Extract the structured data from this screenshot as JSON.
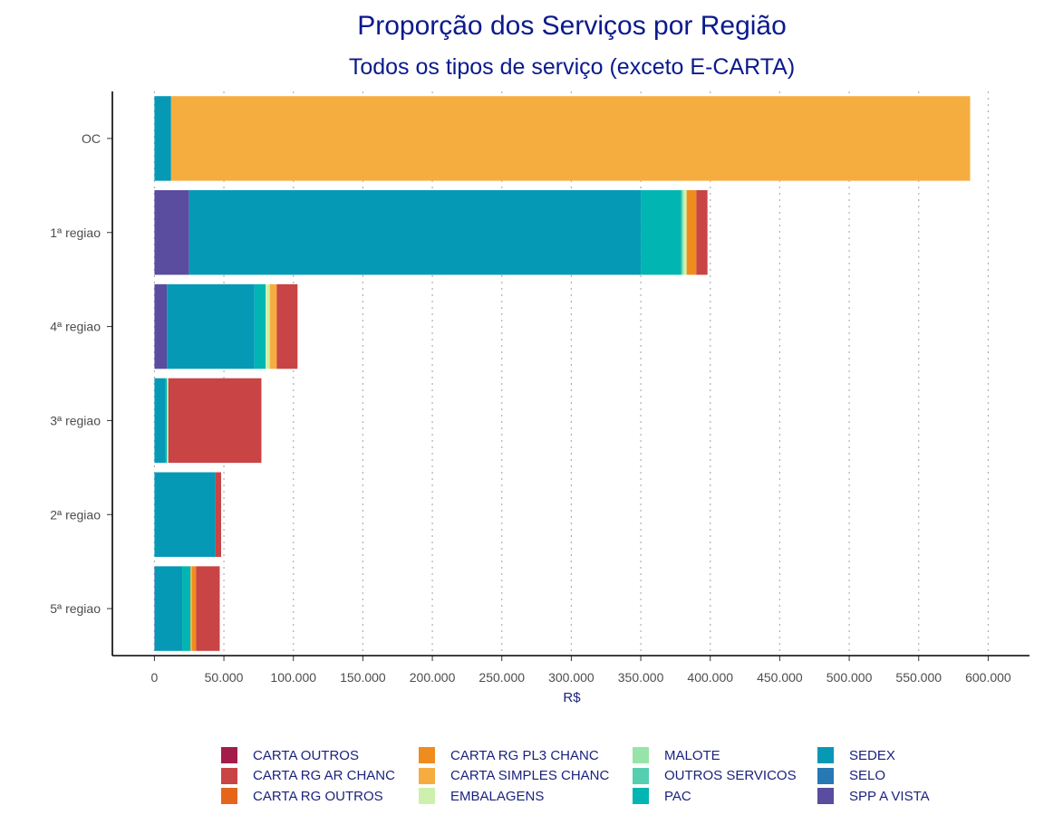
{
  "chart_data": {
    "type": "bar",
    "orientation": "horizontal",
    "stacked": true,
    "title": "Proporção dos Serviços por Região",
    "subtitle": "Todos os tipos de serviço (exceto E-CARTA)",
    "xlabel": "R$",
    "ylabel": "",
    "xlim": [
      -30000,
      630000
    ],
    "xticks": [
      0,
      50000,
      100000,
      150000,
      200000,
      250000,
      300000,
      350000,
      400000,
      450000,
      500000,
      550000,
      600000
    ],
    "xtick_labels": [
      "0",
      "50.000",
      "100.000",
      "150.000",
      "200.000",
      "250.000",
      "300.000",
      "350.000",
      "400.000",
      "450.000",
      "500.000",
      "550.000",
      "600.000"
    ],
    "grid": "vertical dotted",
    "legend_position": "bottom",
    "categories": [
      "OC",
      "1ª regiao",
      "4ª regiao",
      "3ª regiao",
      "2ª regiao",
      "5ª regiao"
    ],
    "series": [
      {
        "name": "SPP A VISTA",
        "color": "#5a4c9e",
        "values": [
          0,
          25000,
          9000,
          0,
          0,
          0
        ]
      },
      {
        "name": "SELO",
        "color": "#2878b4",
        "values": [
          0,
          0,
          0,
          0,
          0,
          1000
        ]
      },
      {
        "name": "SEDEX",
        "color": "#0599b6",
        "values": [
          12000,
          325000,
          63000,
          8000,
          44000,
          19000
        ]
      },
      {
        "name": "PAC",
        "color": "#00b5b2",
        "values": [
          0,
          29000,
          8000,
          1000,
          0,
          6000
        ]
      },
      {
        "name": "OUTROS SERVICOS",
        "color": "#55cfb0",
        "values": [
          0,
          1000,
          0,
          0,
          0,
          0
        ]
      },
      {
        "name": "MALOTE",
        "color": "#98e4a8",
        "values": [
          0,
          1000,
          0,
          0,
          0,
          0
        ]
      },
      {
        "name": "EMBALAGENS",
        "color": "#cdf1ad",
        "values": [
          0,
          2000,
          3000,
          1000,
          0,
          0
        ]
      },
      {
        "name": "CARTA SIMPLES CHANC",
        "color": "#f6ad3f",
        "values": [
          575000,
          0,
          5000,
          0,
          0,
          1000
        ]
      },
      {
        "name": "CARTA RG PL3 CHANC",
        "color": "#ef8c1e",
        "values": [
          0,
          7000,
          0,
          0,
          0,
          3000
        ]
      },
      {
        "name": "CARTA RG OUTROS",
        "color": "#e5661a",
        "values": [
          0,
          0,
          0,
          0,
          0,
          0
        ]
      },
      {
        "name": "CARTA RG AR CHANC",
        "color": "#c94444",
        "values": [
          0,
          8000,
          15000,
          67000,
          4000,
          17000
        ]
      },
      {
        "name": "CARTA OUTROS",
        "color": "#a31c4a",
        "values": [
          0,
          0,
          0,
          0,
          0,
          0
        ]
      }
    ],
    "legend_order": [
      "CARTA OUTROS",
      "CARTA RG AR CHANC",
      "CARTA RG OUTROS",
      "CARTA RG PL3 CHANC",
      "CARTA SIMPLES CHANC",
      "EMBALAGENS",
      "MALOTE",
      "OUTROS SERVICOS",
      "PAC",
      "SEDEX",
      "SELO",
      "SPP A VISTA"
    ]
  }
}
